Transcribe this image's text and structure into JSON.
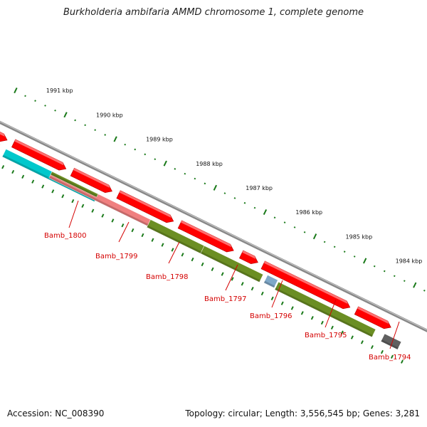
{
  "title": "Burkholderia ambifaria AMMD chromosome 1, complete genome",
  "footer": {
    "accession": "Accession: NC_008390",
    "stats": "Topology: circular; Length: 3,556,545 bp; Genes: 3,281"
  },
  "ruler": {
    "labels": [
      "1991 kbp",
      "1990 kbp",
      "1989 kbp",
      "1988 kbp",
      "1987 kbp",
      "1986 kbp",
      "1985 kbp",
      "1984 kbp"
    ]
  },
  "genes": [
    {
      "name": "Bamb_1800",
      "color": "#00c8cc"
    },
    {
      "name": "Bamb_1799",
      "color": "#f08080"
    },
    {
      "name": "Bamb_1798",
      "color": "#6b8e23"
    },
    {
      "name": "Bamb_1797",
      "color": "#6b8e23"
    },
    {
      "name": "Bamb_1796",
      "color": "#7fa8c8"
    },
    {
      "name": "Bamb_1795",
      "color": "#6b8e23"
    },
    {
      "name": "Bamb_1794",
      "color": "#606060"
    }
  ],
  "colors": {
    "cds_red": "#ff0000",
    "backbone": "#888888",
    "tick_green": "#1a7a1a",
    "label_red": "#d40000"
  }
}
